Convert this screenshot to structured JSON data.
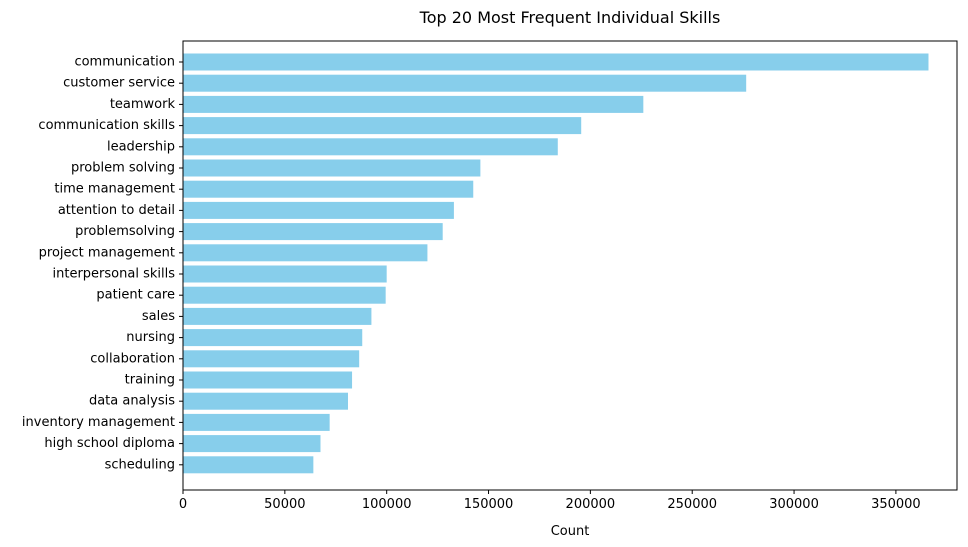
{
  "chart_data": {
    "type": "bar",
    "orientation": "horizontal",
    "title": "Top 20 Most Frequent Individual Skills",
    "xlabel": "Count",
    "ylabel": "",
    "categories": [
      "communication",
      "customer service",
      "teamwork",
      "communication skills",
      "leadership",
      "problem solving",
      "time management",
      "attention to detail",
      "problemsolving",
      "project management",
      "interpersonal skills",
      "patient care",
      "sales",
      "nursing",
      "collaboration",
      "training",
      "data analysis",
      "inventory management",
      "high school diploma",
      "scheduling"
    ],
    "values": [
      366000,
      276500,
      226000,
      195500,
      184000,
      146000,
      142500,
      133000,
      127500,
      120000,
      100000,
      99500,
      92500,
      88000,
      86500,
      83000,
      81000,
      72000,
      67500,
      64000
    ],
    "xlim": [
      0,
      380000
    ],
    "xticks": [
      0,
      50000,
      100000,
      150000,
      200000,
      250000,
      300000,
      350000
    ],
    "xtick_labels": [
      "0",
      "50000",
      "100000",
      "150000",
      "200000",
      "250000",
      "300000",
      "350000"
    ],
    "bar_color": "#87ceeb",
    "grid": false,
    "legend": "none"
  }
}
